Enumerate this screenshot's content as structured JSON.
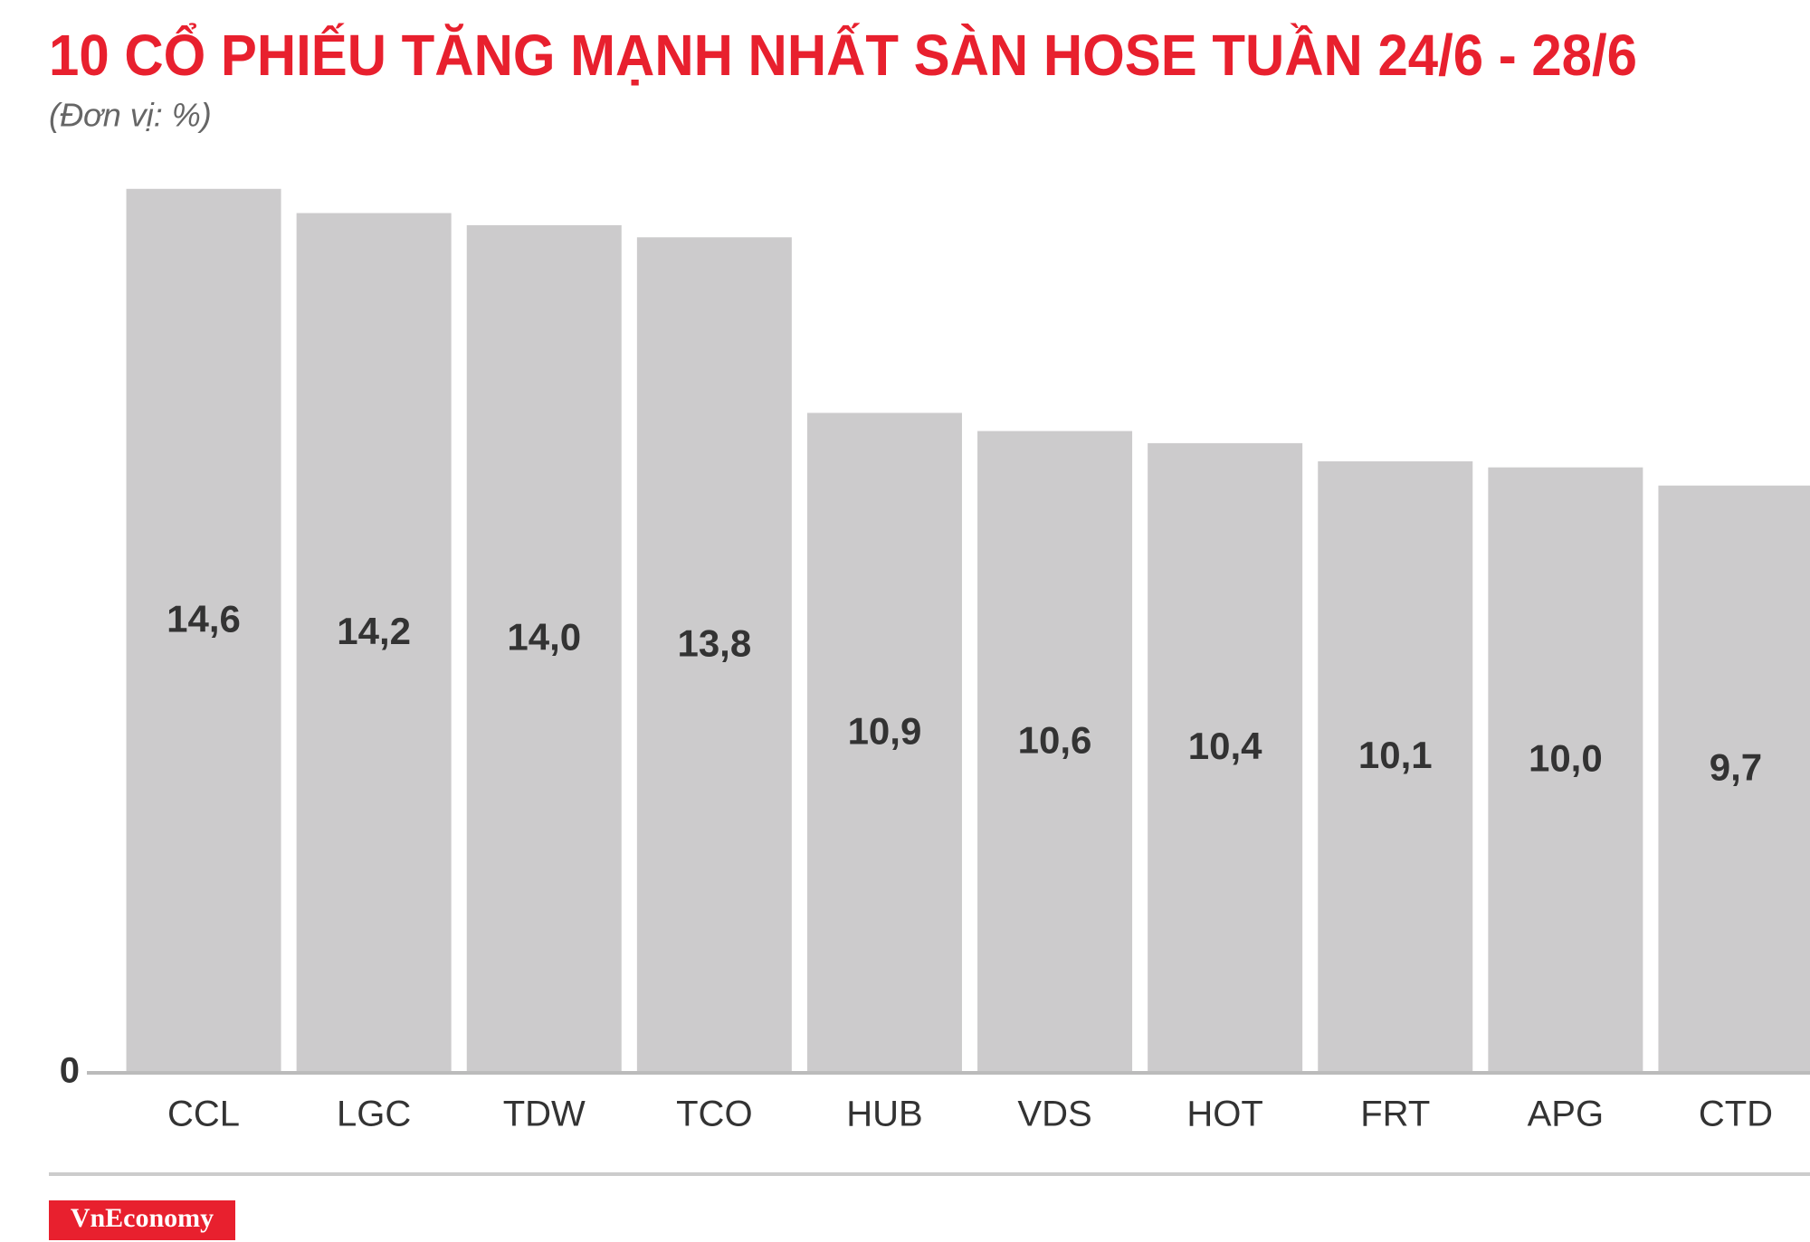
{
  "chart_data": {
    "type": "bar",
    "title": "10 CỔ PHIẾU TĂNG MẠNH NHẤT SÀN HOSE TUẦN 24/6 - 28/6",
    "subtitle": "(Đơn vị: %)",
    "categories": [
      "CCL",
      "LGC",
      "TDW",
      "TCO",
      "HUB",
      "VDS",
      "HOT",
      "FRT",
      "APG",
      "CTD"
    ],
    "values": [
      14.6,
      14.2,
      14.0,
      13.8,
      10.9,
      10.6,
      10.4,
      10.1,
      10.0,
      9.7
    ],
    "value_labels": [
      "14,6",
      "14,2",
      "14,0",
      "13,8",
      "10,9",
      "10,6",
      "10,4",
      "10,1",
      "10,0",
      "9,7"
    ],
    "color": "#cccbcc",
    "ylim": [
      0,
      15
    ],
    "yticks": [
      0
    ]
  },
  "footer": {
    "brand": "VnEconomy"
  }
}
